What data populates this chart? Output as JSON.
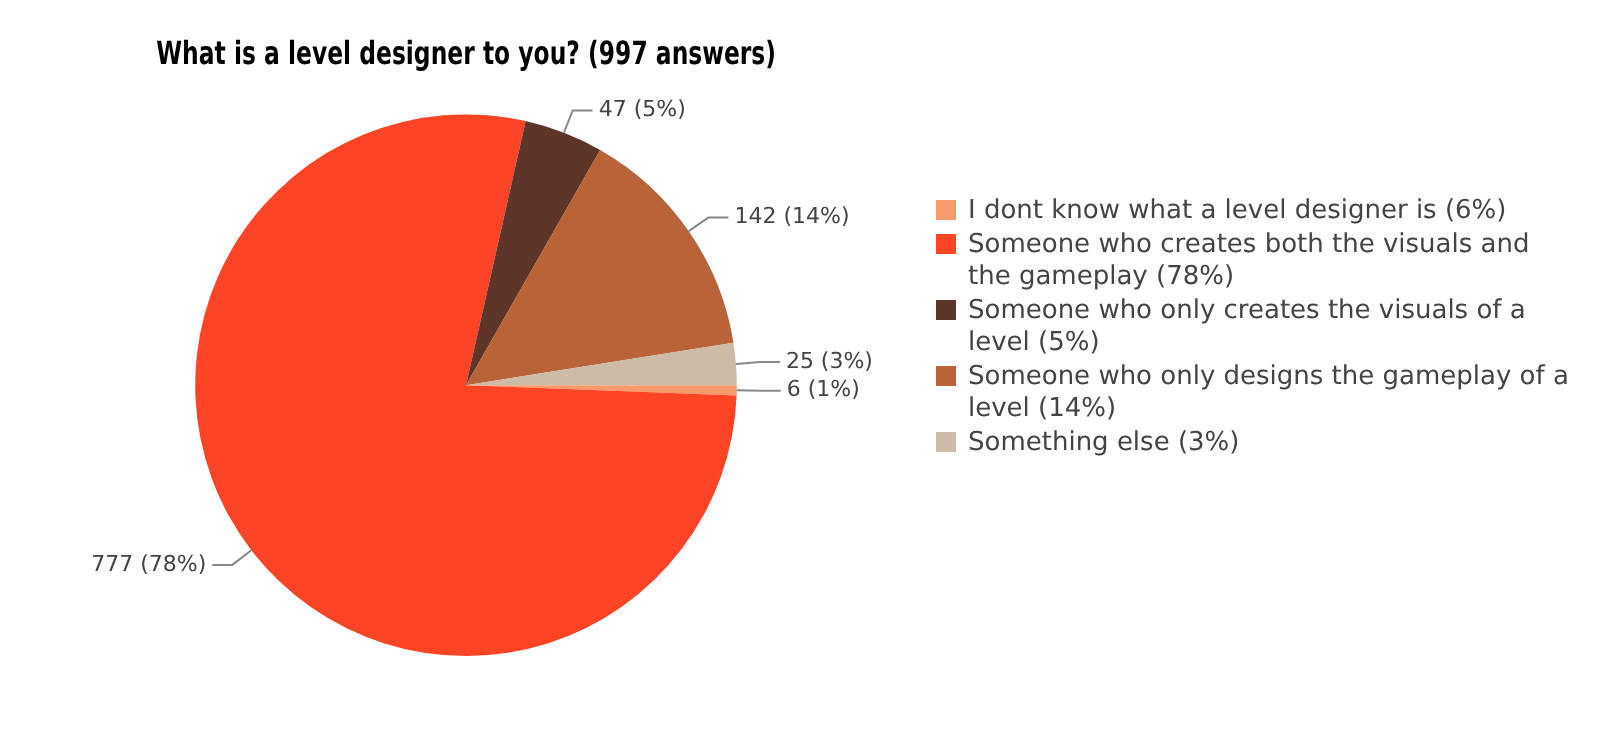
{
  "chart_data": {
    "type": "pie",
    "title": "What is a level designer to you? (997 answers)",
    "categories": [
      "I dont know what a level designer is (6%)",
      "Someone who creates both the visuals and the gameplay (78%)",
      "Someone who only creates the visuals of a level (5%)",
      "Someone who only designs the gameplay of a level (14%)",
      "Something else (3%)"
    ],
    "values": [
      6,
      777,
      47,
      142,
      25
    ],
    "colors": [
      "#f79a6c",
      "#fd4425",
      "#5e3529",
      "#b86438",
      "#cdbba8"
    ],
    "value_labels": [
      "6 (1%)",
      "777 (78%)",
      "47 (5%)",
      "142 (14%)",
      "25 (3%)"
    ],
    "legend": "right"
  }
}
